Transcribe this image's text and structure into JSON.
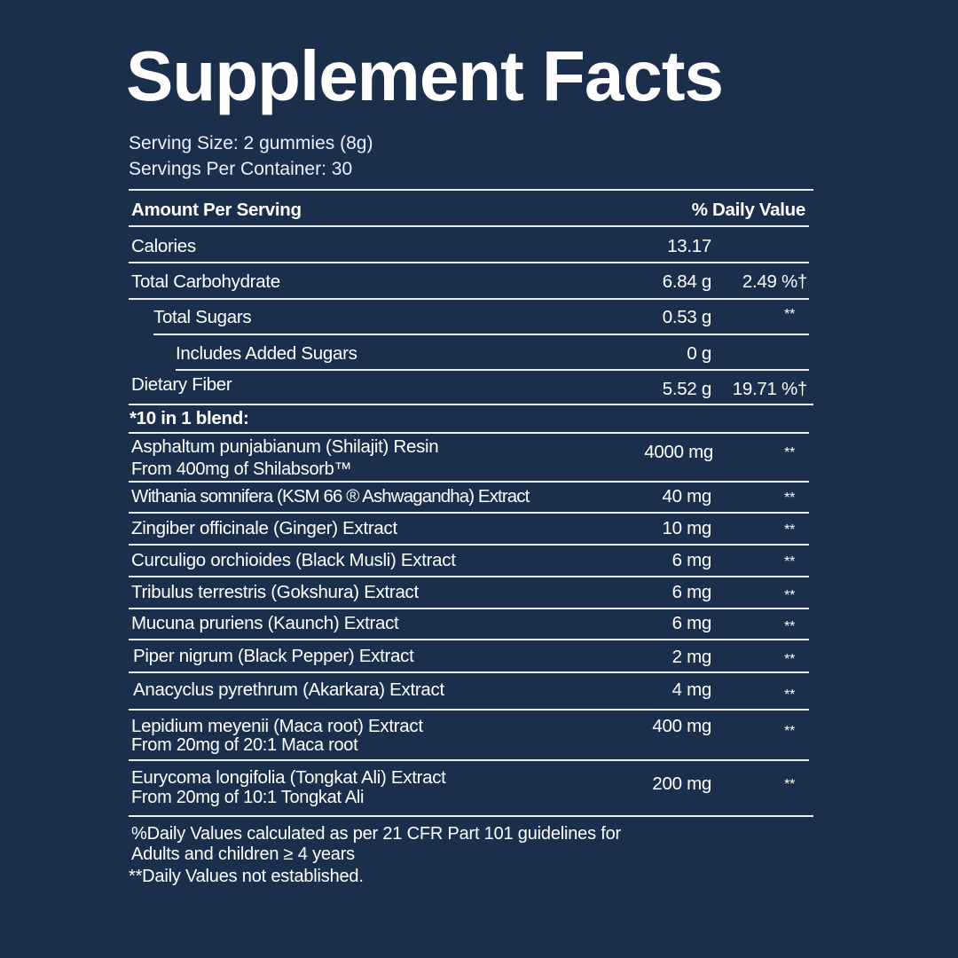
{
  "title": "Supplement Facts",
  "serving_size": "Serving Size: 2 gummies (8g)",
  "servings_per_container": "Servings Per Container: 30",
  "header": {
    "amount": "Amount Per Serving",
    "daily_value": "% Daily Value"
  },
  "nutrients": [
    {
      "name": "Calories",
      "amount": "13.17",
      "dv": ""
    },
    {
      "name": "Total Carbohydrate",
      "amount": "6.84 g",
      "dv": "2.49 %†"
    },
    {
      "name": "Total Sugars",
      "amount": "0.53 g",
      "dv": "**"
    },
    {
      "name": "Includes Added Sugars",
      "amount": "0 g",
      "dv": ""
    },
    {
      "name": "Dietary Fiber",
      "amount": "5.52 g",
      "dv": "19.71 %†"
    }
  ],
  "blend_title": "*10 in 1 blend:",
  "blend": [
    {
      "name": "Asphaltum punjabianum (Shilajit) Resin",
      "note": "From 400mg of Shilabsorb™",
      "amount": "4000 mg",
      "dv": "**"
    },
    {
      "name": "Withania somnifera (KSM 66 ® Ashwagandha) Extract",
      "amount": "40 mg",
      "dv": "**"
    },
    {
      "name": "Zingiber officinale (Ginger) Extract",
      "amount": "10 mg",
      "dv": "**"
    },
    {
      "name": "Curculigo orchioides (Black Musli) Extract",
      "amount": "6 mg",
      "dv": "**"
    },
    {
      "name": "Tribulus terrestris (Gokshura) Extract",
      "amount": "6 mg",
      "dv": "**"
    },
    {
      "name": "Mucuna pruriens (Kaunch) Extract",
      "amount": "6 mg",
      "dv": "**"
    },
    {
      "name": "Piper nigrum (Black Pepper) Extract",
      "amount": "2 mg",
      "dv": "**"
    },
    {
      "name": "Anacyclus pyrethrum (Akarkara) Extract",
      "amount": "4 mg",
      "dv": "**"
    },
    {
      "name": "Lepidium meyenii (Maca root) Extract",
      "note": "From 20mg of 20:1 Maca root",
      "amount": "400 mg",
      "dv": "**"
    },
    {
      "name": "Eurycoma longifolia (Tongkat Ali) Extract",
      "note": "From 20mg of 10:1 Tongkat Ali",
      "amount": "200 mg",
      "dv": "**"
    }
  ],
  "footnotes": [
    "%Daily Values calculated as per 21 CFR Part 101 guidelines for",
    "Adults and children ≥ 4 years",
    "**Daily Values not established."
  ],
  "colors": {
    "background": "#1b2f4d",
    "text": "#ffffff"
  }
}
